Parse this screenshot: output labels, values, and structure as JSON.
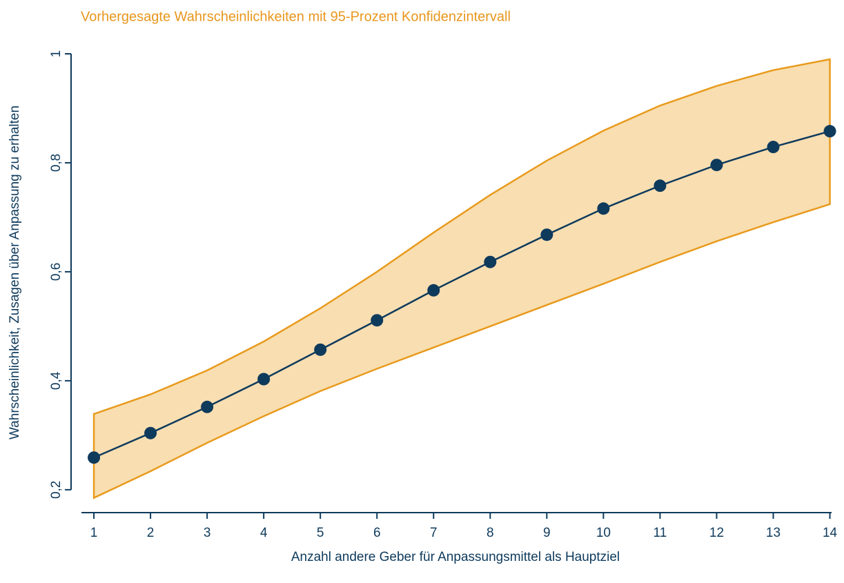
{
  "chart_data": {
    "type": "line",
    "title": "Vorhergesagte Wahrscheinlichkeiten mit 95-Prozent Konfidenzintervall",
    "x_label": "Anzahl andere Geber für Anpassungsmittel als Hauptziel",
    "y_label": "Wahrscheinlichkeit, Zusagen über Anpassung zu erhalten",
    "x": [
      1,
      2,
      3,
      4,
      5,
      6,
      7,
      8,
      9,
      10,
      11,
      12,
      13,
      14
    ],
    "series": [
      {
        "color": "#0e3a5c",
        "values": [
          0.259,
          0.304,
          0.352,
          0.403,
          0.457,
          0.511,
          0.566,
          0.618,
          0.668,
          0.716,
          0.758,
          0.796,
          0.829,
          0.858
        ]
      }
    ],
    "band": {
      "color": "#f8deb1",
      "line_color": "#e89a1c",
      "upper": [
        0.339,
        0.375,
        0.419,
        0.472,
        0.533,
        0.6,
        0.672,
        0.741,
        0.804,
        0.859,
        0.905,
        0.941,
        0.97,
        0.99
      ],
      "lower": [
        0.185,
        0.234,
        0.286,
        0.335,
        0.381,
        0.422,
        0.461,
        0.5,
        0.539,
        0.578,
        0.618,
        0.656,
        0.691,
        0.724
      ]
    },
    "xlim": [
      0.78,
      14.03
    ],
    "ylim": [
      0.158,
      1.0
    ],
    "xticks": [
      1,
      2,
      3,
      4,
      5,
      6,
      7,
      8,
      9,
      10,
      11,
      12,
      13,
      14
    ],
    "yticks": [
      {
        "value": 0.2,
        "label": "0,2"
      },
      {
        "value": 0.4,
        "label": "0,4"
      },
      {
        "value": 0.6,
        "label": "0,6"
      },
      {
        "value": 0.8,
        "label": "0,8"
      },
      {
        "value": 1,
        "label": "1"
      }
    ],
    "grid": false
  }
}
